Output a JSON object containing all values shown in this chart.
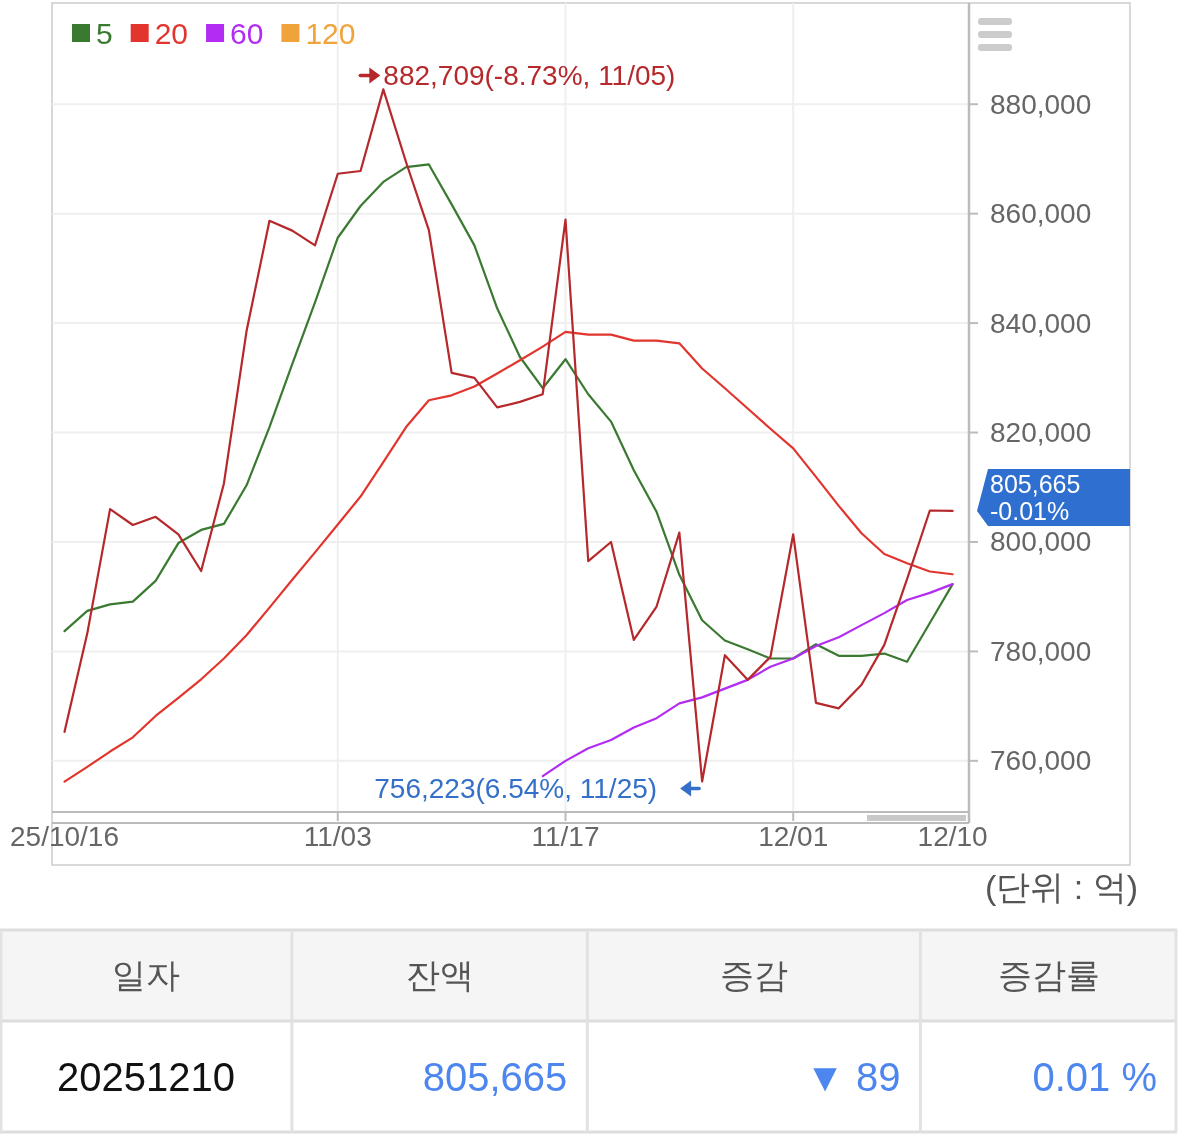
{
  "chart_data": [
    {
      "type": "line",
      "categories": [
        "25/10/16",
        null,
        null,
        null,
        null,
        null,
        null,
        null,
        null,
        null,
        null,
        null,
        "11/03",
        null,
        null,
        null,
        null,
        null,
        null,
        null,
        null,
        null,
        "11/17",
        null,
        null,
        null,
        null,
        null,
        null,
        null,
        null,
        null,
        "12/01",
        null,
        null,
        null,
        null,
        null,
        null,
        "12/10"
      ],
      "series": [
        {
          "name": "5",
          "color": "#3a7a30",
          "values": [
            783700,
            787400,
            788600,
            789100,
            792900,
            799800,
            802200,
            803300,
            810400,
            821000,
            832500,
            843800,
            855600,
            861400,
            865800,
            868500,
            869000,
            861700,
            854200,
            842700,
            833800,
            828100,
            833400,
            827000,
            822000,
            813100,
            805500,
            794000,
            785700,
            782000,
            780400,
            778700,
            778700,
            781300,
            779200,
            779200,
            779600,
            778100,
            785200,
            792300
          ]
        },
        {
          "name": "20",
          "color": "#e2352d",
          "values": [
            756200,
            758900,
            761700,
            764300,
            768200,
            771500,
            774900,
            778700,
            783000,
            788000,
            793100,
            798100,
            803200,
            808300,
            814600,
            821000,
            825900,
            826800,
            828400,
            830800,
            833200,
            835700,
            838400,
            837900,
            837900,
            836800,
            836800,
            836300,
            831700,
            828100,
            824400,
            820700,
            817100,
            811900,
            806600,
            801600,
            797800,
            796100,
            794600,
            794100
          ]
        },
        {
          "name": "60",
          "color": "#b22cf2",
          "values": [
            null,
            null,
            null,
            null,
            null,
            null,
            null,
            null,
            null,
            null,
            null,
            null,
            null,
            null,
            null,
            null,
            null,
            null,
            null,
            null,
            null,
            757200,
            760000,
            762300,
            763800,
            766100,
            767800,
            770500,
            771600,
            773200,
            774800,
            777200,
            778700,
            781000,
            782600,
            784800,
            787000,
            789400,
            790700,
            792300
          ]
        },
        {
          "name": "120",
          "color": "#f0a33a",
          "values": [
            null,
            null,
            null,
            null,
            null,
            null,
            null,
            null,
            null,
            null,
            null,
            null,
            null,
            null,
            null,
            null,
            null,
            null,
            null,
            null,
            null,
            null,
            null,
            null,
            null,
            null,
            null,
            null,
            null,
            null,
            null,
            null,
            null,
            null,
            null,
            null,
            null,
            null,
            null,
            null
          ]
        },
        {
          "color": "#b5282b",
          "values": [
            765300,
            783300,
            806000,
            803100,
            804600,
            801400,
            794700,
            810700,
            838700,
            858700,
            856900,
            854200,
            867300,
            867800,
            882709,
            869400,
            857000,
            830900,
            830000,
            824600,
            825600,
            827000,
            858900,
            796500,
            800000,
            782100,
            788200,
            801700,
            756223,
            779300,
            774800,
            779000,
            801400,
            770600,
            769600,
            773900,
            781200,
            793200,
            805754,
            805665
          ]
        }
      ],
      "ylim": [
        750650,
        898500
      ],
      "yticks": [
        {
          "value": 760000,
          "label": "760,000"
        },
        {
          "value": 780000,
          "label": "780,000"
        },
        {
          "value": 800000,
          "label": "800,000"
        },
        {
          "value": 820000,
          "label": "820,000"
        },
        {
          "value": 840000,
          "label": "840,000"
        },
        {
          "value": 860000,
          "label": "860,000"
        },
        {
          "value": 880000,
          "label": "880,000"
        }
      ],
      "ylabel": "(단위 : 억)",
      "grid": true,
      "legend": "top left",
      "annotations": [
        "882,709(-8.73%, 11/05)",
        "756,223(6.54%, 11/25)",
        {
          "text": "805,665\n-0.01%",
          "x": "12/10",
          "y": 805665
        }
      ]
    },
    {
      "type": "other",
      "categories": [
        "일자",
        "잔액",
        "증감",
        "증감률"
      ],
      "cell_labels": [
        [
          "20251210",
          "805,665",
          "▼ 89",
          "0.01 %"
        ]
      ]
    }
  ]
}
